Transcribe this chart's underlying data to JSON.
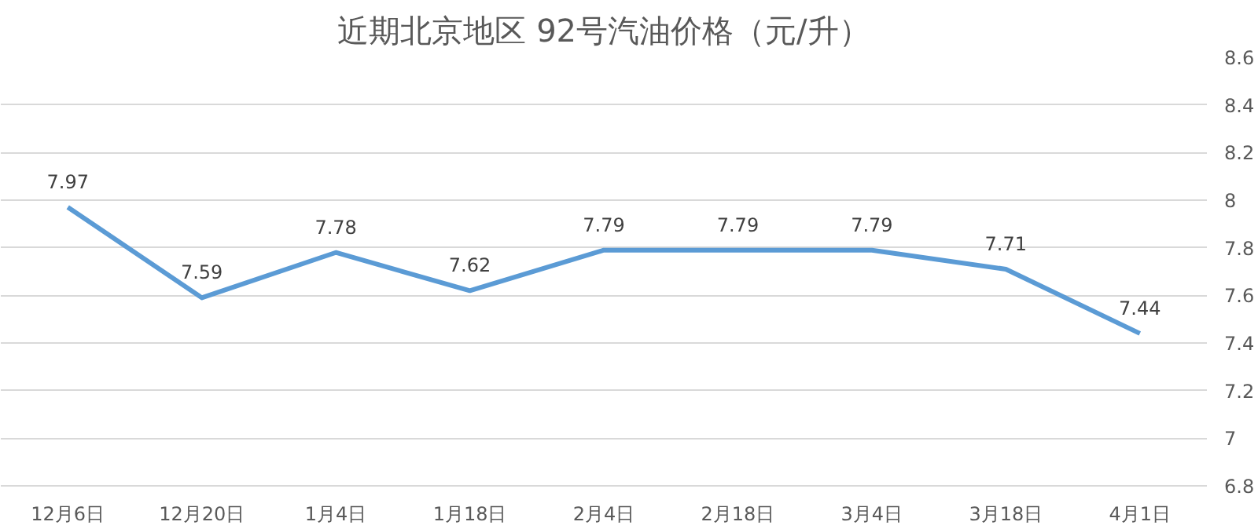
{
  "chart_data": {
    "type": "line",
    "title": "近期北京地区 92号汽油价格（元/升）",
    "categories": [
      "12月6日",
      "12月20日",
      "1月4日",
      "1月18日",
      "2月4日",
      "2月18日",
      "3月4日",
      "3月18日",
      "4月1日"
    ],
    "series": [
      {
        "color": "#5b9bd5",
        "values": [
          7.97,
          7.59,
          7.78,
          7.62,
          7.79,
          7.79,
          7.79,
          7.71,
          7.44
        ]
      }
    ],
    "ylim": [
      6.8,
      8.6
    ],
    "yticks": [
      6.8,
      7,
      7.2,
      7.4,
      7.6,
      7.8,
      8,
      8.2,
      8.4,
      8.6
    ],
    "grid": "y",
    "data_labels": true,
    "line_style": "solid"
  }
}
